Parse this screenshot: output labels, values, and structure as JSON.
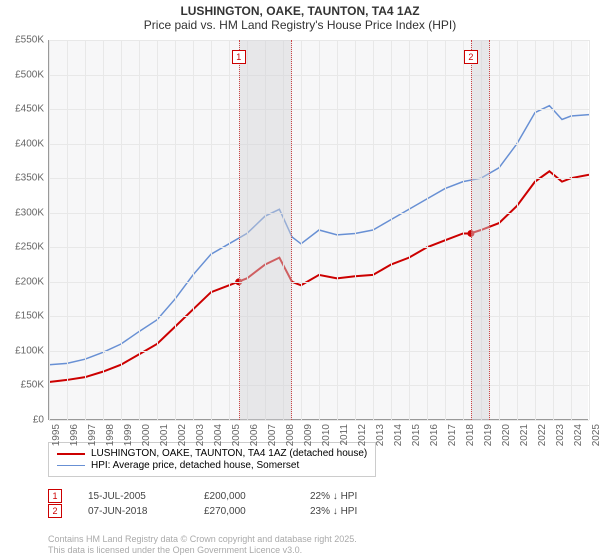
{
  "title": {
    "line1": "LUSHINGTON, OAKE, TAUNTON, TA4 1AZ",
    "line2": "Price paid vs. HM Land Registry's House Price Index (HPI)"
  },
  "chart": {
    "type": "line",
    "background_color": "#f7f7f8",
    "grid_color": "#e8e8e8",
    "axis_color": "#999999",
    "ylim": [
      0,
      550
    ],
    "ytick_step": 50,
    "ylabels": [
      "£0",
      "£50K",
      "£100K",
      "£150K",
      "£200K",
      "£250K",
      "£300K",
      "£350K",
      "£400K",
      "£450K",
      "£500K",
      "£550K"
    ],
    "xlim": [
      1995,
      2025
    ],
    "xticks": [
      1995,
      1996,
      1997,
      1998,
      1999,
      2000,
      2001,
      2002,
      2003,
      2004,
      2005,
      2006,
      2007,
      2008,
      2009,
      2010,
      2011,
      2012,
      2013,
      2014,
      2015,
      2016,
      2017,
      2018,
      2019,
      2020,
      2021,
      2022,
      2023,
      2024,
      2025
    ],
    "series": [
      {
        "name": "price_paid",
        "label": "LUSHINGTON, OAKE, TAUNTON, TA4 1AZ (detached house)",
        "color": "#cc0000",
        "line_width": 2,
        "data": [
          [
            1995,
            55
          ],
          [
            1996,
            58
          ],
          [
            1997,
            62
          ],
          [
            1998,
            70
          ],
          [
            1999,
            80
          ],
          [
            2000,
            95
          ],
          [
            2001,
            110
          ],
          [
            2002,
            135
          ],
          [
            2003,
            160
          ],
          [
            2004,
            185
          ],
          [
            2005,
            195
          ],
          [
            2005.5,
            200
          ],
          [
            2006,
            205
          ],
          [
            2007,
            225
          ],
          [
            2007.8,
            235
          ],
          [
            2008.5,
            200
          ],
          [
            2009,
            195
          ],
          [
            2010,
            210
          ],
          [
            2011,
            205
          ],
          [
            2012,
            208
          ],
          [
            2013,
            210
          ],
          [
            2014,
            225
          ],
          [
            2015,
            235
          ],
          [
            2016,
            250
          ],
          [
            2017,
            260
          ],
          [
            2018,
            270
          ],
          [
            2018.4,
            270
          ],
          [
            2019,
            275
          ],
          [
            2020,
            285
          ],
          [
            2021,
            310
          ],
          [
            2022,
            345
          ],
          [
            2022.8,
            360
          ],
          [
            2023.5,
            345
          ],
          [
            2024,
            350
          ],
          [
            2025,
            355
          ]
        ]
      },
      {
        "name": "hpi",
        "label": "HPI: Average price, detached house, Somerset",
        "color": "#6890d4",
        "line_width": 1.5,
        "data": [
          [
            1995,
            80
          ],
          [
            1996,
            82
          ],
          [
            1997,
            88
          ],
          [
            1998,
            98
          ],
          [
            1999,
            110
          ],
          [
            2000,
            128
          ],
          [
            2001,
            145
          ],
          [
            2002,
            175
          ],
          [
            2003,
            210
          ],
          [
            2004,
            240
          ],
          [
            2005,
            255
          ],
          [
            2006,
            270
          ],
          [
            2007,
            295
          ],
          [
            2007.8,
            305
          ],
          [
            2008.5,
            265
          ],
          [
            2009,
            255
          ],
          [
            2010,
            275
          ],
          [
            2011,
            268
          ],
          [
            2012,
            270
          ],
          [
            2013,
            275
          ],
          [
            2014,
            290
          ],
          [
            2015,
            305
          ],
          [
            2016,
            320
          ],
          [
            2017,
            335
          ],
          [
            2018,
            345
          ],
          [
            2019,
            350
          ],
          [
            2020,
            365
          ],
          [
            2021,
            400
          ],
          [
            2022,
            445
          ],
          [
            2022.8,
            455
          ],
          [
            2023.5,
            435
          ],
          [
            2024,
            440
          ],
          [
            2025,
            442
          ]
        ]
      }
    ],
    "shaded_regions": [
      {
        "start": 2005.54,
        "end": 2008.5,
        "marker": "1",
        "marker_color": "#cc0000"
      },
      {
        "start": 2018.44,
        "end": 2019.5,
        "marker": "2",
        "marker_color": "#cc0000"
      }
    ],
    "data_points": [
      {
        "x": 2005.54,
        "y": 200,
        "color": "#cc0000"
      },
      {
        "x": 2018.44,
        "y": 270,
        "color": "#cc0000"
      }
    ]
  },
  "legend": {
    "items": [
      {
        "color": "#cc0000",
        "width": 2,
        "label": "LUSHINGTON, OAKE, TAUNTON, TA4 1AZ (detached house)"
      },
      {
        "color": "#6890d4",
        "width": 1.5,
        "label": "HPI: Average price, detached house, Somerset"
      }
    ]
  },
  "transactions": [
    {
      "marker": "1",
      "marker_color": "#cc0000",
      "date": "15-JUL-2005",
      "price": "£200,000",
      "delta": "22% ↓ HPI"
    },
    {
      "marker": "2",
      "marker_color": "#cc0000",
      "date": "07-JUN-2018",
      "price": "£270,000",
      "delta": "23% ↓ HPI"
    }
  ],
  "footer": {
    "line1": "Contains HM Land Registry data © Crown copyright and database right 2025.",
    "line2": "This data is licensed under the Open Government Licence v3.0."
  }
}
